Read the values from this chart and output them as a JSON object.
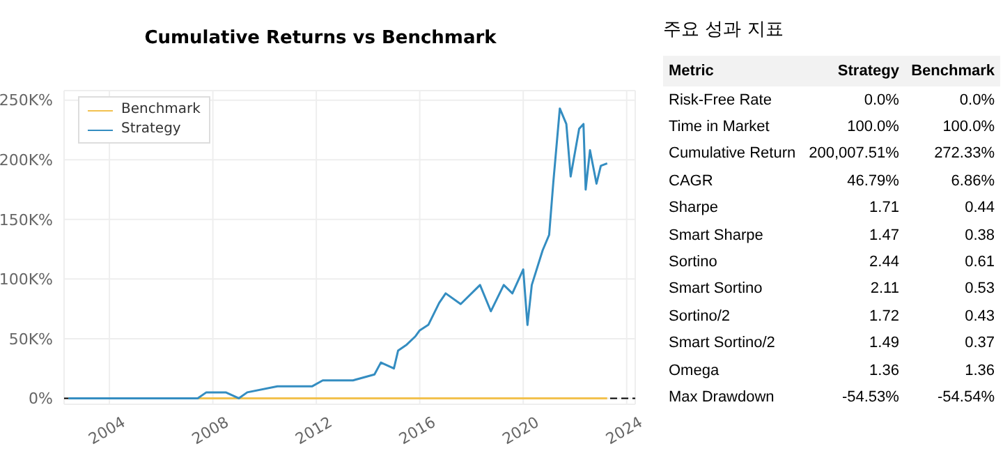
{
  "chart_data": [
    {
      "type": "line",
      "title": "Cumulative Returns vs Benchmark",
      "legend": "top left",
      "grid": true,
      "marker": "none",
      "line_style": "solid",
      "xlim": [
        "2002-04",
        "2024-05"
      ],
      "xticks": [
        "2004",
        "2008",
        "2012",
        "2016",
        "2020",
        "2024"
      ],
      "ylim": [
        -5000,
        258000
      ],
      "yticks": [
        {
          "value": 0,
          "label": "0%"
        },
        {
          "value": 50000,
          "label": "50K%"
        },
        {
          "value": 100000,
          "label": "100K%"
        },
        {
          "value": 150000,
          "label": "150K%"
        },
        {
          "value": 200000,
          "label": "200K%"
        },
        {
          "value": 250000,
          "label": "250K%"
        }
      ],
      "ref_lines": [
        {
          "axis": "y",
          "value": 0,
          "color": "#000000",
          "line_style": "dashed"
        }
      ],
      "series": [
        {
          "name": "Benchmark",
          "color": "#f2c14e",
          "x": [
            "2002-06",
            "2008-01",
            "2012-01",
            "2016-01",
            "2020-01",
            "2023-04"
          ],
          "values": [
            0,
            0,
            0,
            0,
            0,
            0
          ]
        },
        {
          "name": "Strategy",
          "color": "#348dc1",
          "x": [
            "2002-06",
            "2007-06",
            "2007-10",
            "2008-07",
            "2009-01",
            "2009-05",
            "2010-07",
            "2011-11",
            "2012-04",
            "2013-06",
            "2014-04",
            "2014-07",
            "2015-01",
            "2015-03",
            "2015-07",
            "2015-11",
            "2016-01",
            "2016-05",
            "2016-10",
            "2017-01",
            "2017-08",
            "2018-05",
            "2018-10",
            "2019-04",
            "2019-08",
            "2020-01",
            "2020-03",
            "2020-05",
            "2020-10",
            "2021-01",
            "2021-03",
            "2021-06",
            "2021-09",
            "2021-11",
            "2022-03",
            "2022-05",
            "2022-06",
            "2022-08",
            "2022-11",
            "2023-01",
            "2023-04"
          ],
          "values": [
            0,
            0,
            5000,
            5000,
            0,
            5000,
            10000,
            10000,
            15000,
            15000,
            20000,
            30000,
            25000,
            40000,
            45000,
            52000,
            57000,
            61600,
            80000,
            88000,
            79000,
            95000,
            73000,
            95000,
            88000,
            108000,
            61500,
            95000,
            124000,
            137000,
            181000,
            243000,
            230000,
            186000,
            226000,
            230000,
            175000,
            208000,
            180000,
            195000,
            197000
          ]
        }
      ]
    },
    {
      "type": "other",
      "title": "주요 성과 지표",
      "categories": [
        "Metric",
        "Strategy",
        "Benchmark"
      ],
      "y_categories": [
        "Risk-Free Rate",
        "Time in Market",
        "Cumulative Return",
        "CAGR",
        "Sharpe",
        "Smart Sharpe",
        "Sortino",
        "Smart Sortino",
        "Sortino/2",
        "Smart Sortino/2",
        "Omega",
        "Max Drawdown"
      ],
      "cell_labels": [
        [
          "0.0%",
          "0.0%"
        ],
        [
          "100.0%",
          "100.0%"
        ],
        [
          "200,007.51%",
          "272.33%"
        ],
        [
          "46.79%",
          "6.86%"
        ],
        [
          "1.71",
          "0.44"
        ],
        [
          "1.47",
          "0.38"
        ],
        [
          "2.44",
          "0.61"
        ],
        [
          "2.11",
          "0.53"
        ],
        [
          "1.72",
          "0.43"
        ],
        [
          "1.49",
          "0.37"
        ],
        [
          "1.36",
          "1.36"
        ],
        [
          "-54.53%",
          "-54.54%"
        ]
      ]
    }
  ]
}
